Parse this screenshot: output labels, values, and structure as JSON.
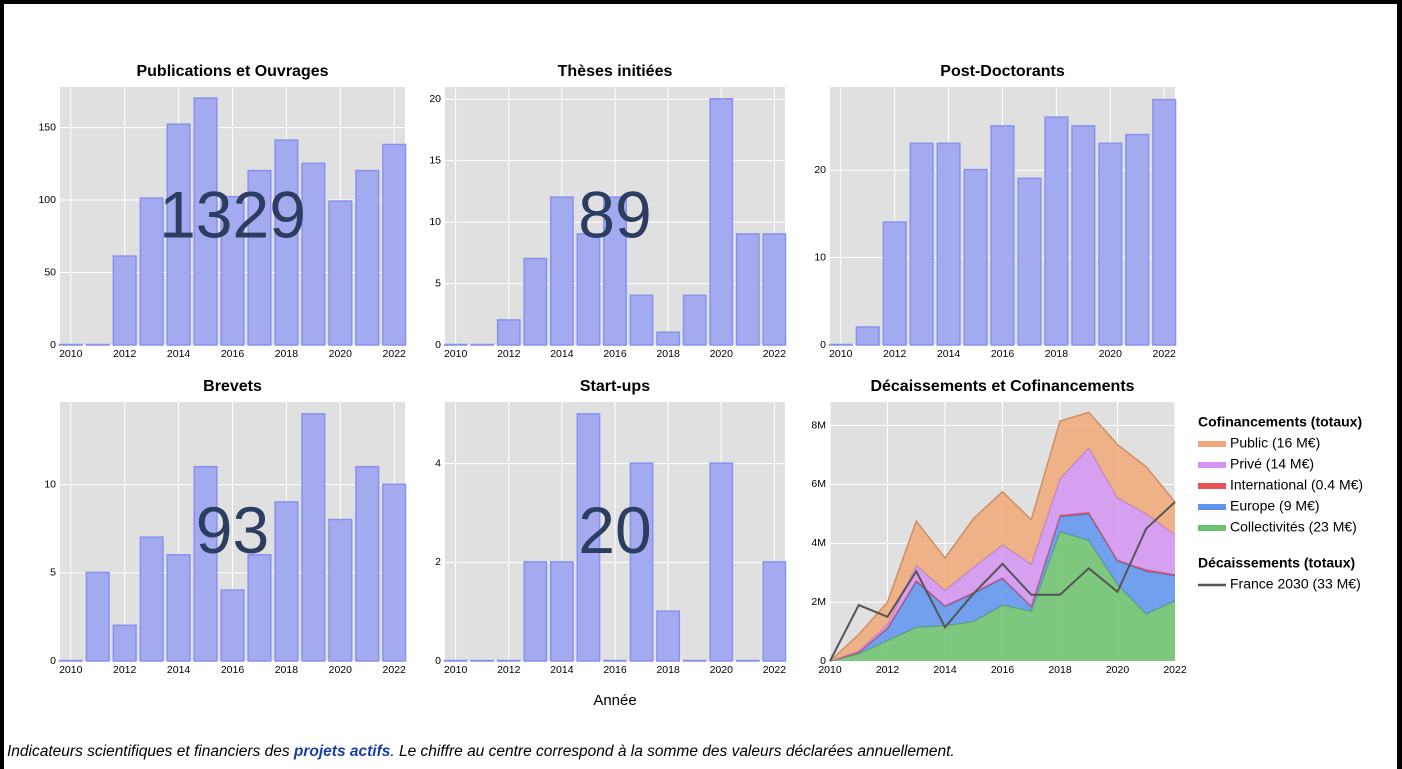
{
  "chart_data": [
    {
      "type": "bar",
      "title": "Publications et Ouvrages",
      "total": 1329,
      "x": [
        2010,
        2011,
        2012,
        2013,
        2014,
        2015,
        2016,
        2017,
        2018,
        2019,
        2020,
        2021,
        2022
      ],
      "values": [
        0,
        0,
        61,
        101,
        152,
        170,
        102,
        120,
        141,
        125,
        99,
        120,
        138
      ],
      "xlim": [
        2009.6,
        2022.4
      ],
      "xticks": [
        2010,
        2012,
        2014,
        2016,
        2018,
        2020,
        2022
      ],
      "ylim": [
        0,
        178
      ],
      "yticks": [
        0,
        50,
        100,
        150
      ],
      "color": "#a3aaf0",
      "grid": true
    },
    {
      "type": "bar",
      "title": "Thèses initiées",
      "total": 89,
      "x": [
        2010,
        2011,
        2012,
        2013,
        2014,
        2015,
        2016,
        2017,
        2018,
        2019,
        2020,
        2021,
        2022
      ],
      "values": [
        0,
        0,
        2,
        7,
        12,
        9,
        12,
        4,
        1,
        4,
        20,
        9,
        9
      ],
      "xlim": [
        2009.6,
        2022.4
      ],
      "xticks": [
        2010,
        2012,
        2014,
        2016,
        2018,
        2020,
        2022
      ],
      "ylim": [
        0,
        21
      ],
      "yticks": [
        0,
        5,
        10,
        15,
        20
      ],
      "color": "#a3aaf0",
      "grid": true
    },
    {
      "type": "bar",
      "title": "Post-Doctorants",
      "x": [
        2010,
        2011,
        2012,
        2013,
        2014,
        2015,
        2016,
        2017,
        2018,
        2019,
        2020,
        2021,
        2022
      ],
      "values": [
        0,
        2,
        14,
        23,
        23,
        20,
        25,
        19,
        26,
        25,
        23,
        24,
        28
      ],
      "xlim": [
        2009.6,
        2022.4
      ],
      "xticks": [
        2010,
        2012,
        2014,
        2016,
        2018,
        2020,
        2022
      ],
      "ylim": [
        0,
        29.5
      ],
      "yticks": [
        0,
        10,
        20
      ],
      "color": "#a3aaf0",
      "grid": true
    },
    {
      "type": "bar",
      "title": "Brevets",
      "total": 93,
      "x": [
        2010,
        2011,
        2012,
        2013,
        2014,
        2015,
        2016,
        2017,
        2018,
        2019,
        2020,
        2021,
        2022
      ],
      "values": [
        0,
        5,
        2,
        7,
        6,
        11,
        4,
        6,
        9,
        14,
        8,
        11,
        10
      ],
      "xlim": [
        2009.6,
        2022.4
      ],
      "xticks": [
        2010,
        2012,
        2014,
        2016,
        2018,
        2020,
        2022
      ],
      "ylim": [
        0,
        14.7
      ],
      "yticks": [
        0,
        5,
        10
      ],
      "color": "#a3aaf0",
      "grid": true
    },
    {
      "type": "bar",
      "title": "Start-ups",
      "total": 20,
      "x": [
        2010,
        2011,
        2012,
        2013,
        2014,
        2015,
        2016,
        2017,
        2018,
        2019,
        2020,
        2021,
        2022
      ],
      "values": [
        0,
        0,
        0,
        2,
        2,
        5,
        0,
        4,
        1,
        0,
        4,
        0,
        2
      ],
      "xlim": [
        2009.6,
        2022.4
      ],
      "xticks": [
        2010,
        2012,
        2014,
        2016,
        2018,
        2020,
        2022
      ],
      "ylim": [
        0,
        5.25
      ],
      "yticks": [
        0,
        2,
        4
      ],
      "color": "#a3aaf0",
      "grid": true
    },
    {
      "type": "area",
      "title": "Décaissements et Cofinancements",
      "legend_titles": [
        "Cofinancements (totaux)",
        "Décaissements (totaux)"
      ],
      "x": [
        2010,
        2011,
        2012,
        2013,
        2014,
        2015,
        2016,
        2017,
        2018,
        2019,
        2020,
        2021,
        2022
      ],
      "xlim": [
        2010,
        2022
      ],
      "xticks": [
        2010,
        2012,
        2014,
        2016,
        2018,
        2020,
        2022
      ],
      "ylim": [
        0,
        8800000
      ],
      "yticks": [
        0,
        {
          "value": 2000000,
          "label": "2M"
        },
        {
          "value": 4000000,
          "label": "4M"
        },
        {
          "value": 6000000,
          "label": "6M"
        },
        {
          "value": 8000000,
          "label": "8M"
        }
      ],
      "grid": true,
      "series": [
        {
          "name": "Public (16 M€)",
          "kind": "area",
          "color": "#f0a878",
          "values": [
            0,
            550000,
            750000,
            1500000,
            1100000,
            1650000,
            1800000,
            1500000,
            1950000,
            1200000,
            1800000,
            1600000,
            1100000
          ]
        },
        {
          "name": "Privé (14 M€)",
          "kind": "area",
          "color": "#d493f2",
          "values": [
            0,
            50000,
            120000,
            510000,
            520000,
            870000,
            1120000,
            1430000,
            1250000,
            2200000,
            2120000,
            1900000,
            1360000
          ]
        },
        {
          "name": "International (0.4 M€)",
          "kind": "area",
          "color": "#e8525a",
          "values": [
            0,
            0,
            30000,
            40000,
            30000,
            30000,
            30000,
            20000,
            50000,
            50000,
            30000,
            50000,
            40000
          ]
        },
        {
          "name": "Europe (9 M€)",
          "kind": "area",
          "color": "#5e93f0",
          "values": [
            0,
            50000,
            400000,
            1550000,
            650000,
            950000,
            900000,
            150000,
            500000,
            900000,
            800000,
            1450000,
            850000
          ]
        },
        {
          "name": "Collectivités (23 M€)",
          "kind": "area",
          "color": "#6cc26c",
          "values": [
            0,
            250000,
            700000,
            1150000,
            1200000,
            1350000,
            1900000,
            1700000,
            4400000,
            4100000,
            2600000,
            1600000,
            2050000
          ]
        },
        {
          "name": "France 2030 (33 M€)",
          "kind": "line",
          "color": "#555555",
          "values": [
            0,
            1900000,
            1500000,
            3050000,
            1150000,
            2300000,
            3300000,
            2250000,
            2250000,
            3150000,
            2350000,
            4500000,
            5400000
          ]
        }
      ]
    }
  ],
  "xlabel": "Année",
  "caption": {
    "before": "Indicateurs scientifiques et financiers des ",
    "link": "projets actifs",
    "after": ". Le chiffre au centre correspond à la somme des valeurs déclarées annuellement."
  }
}
